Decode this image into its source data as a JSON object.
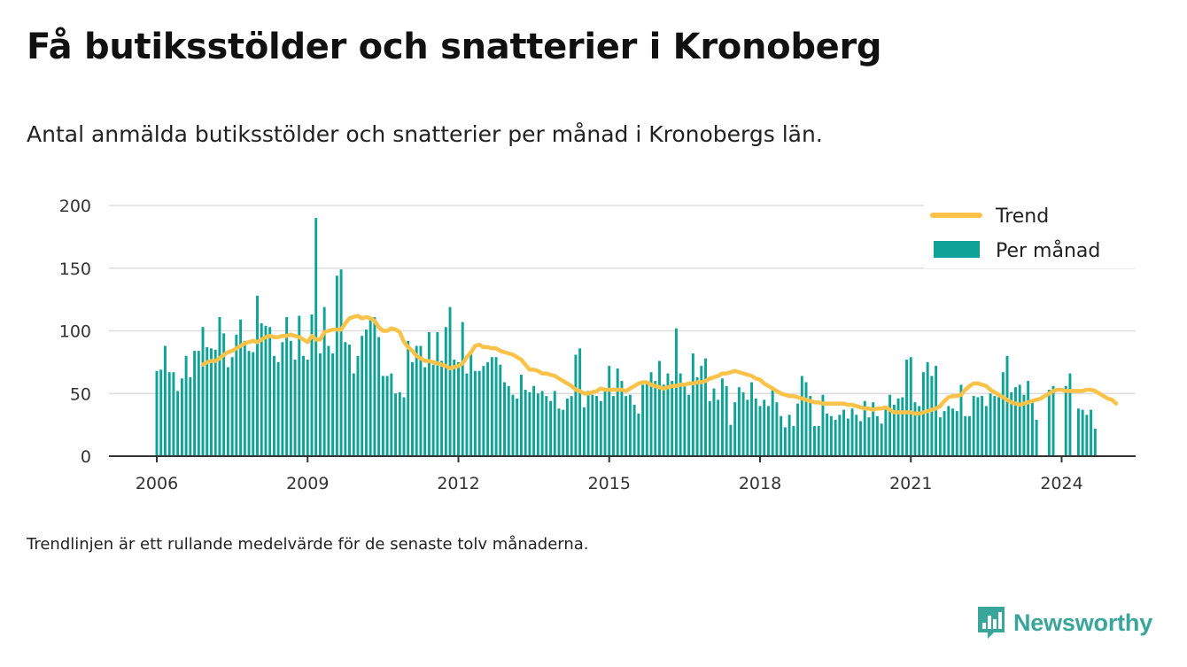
{
  "title": "Få butiksstölder och snatterier i Kronoberg",
  "subtitle": "Antal anmälda butiksstölder och snatterier per månad i Kronobergs län.",
  "note": "Trendlinjen är ett rullande medelvärde för de senaste tolv månaderna.",
  "brand": {
    "name": "Newsworthy",
    "icon": "newsworthy-logo-icon"
  },
  "colors": {
    "bars": "#0fa397",
    "trend": "#fbc24a",
    "grid": "#dddddd",
    "axis": "#333333",
    "brand": "#3aa59a"
  },
  "chart_data": {
    "type": "bar",
    "ylim": [
      0,
      200
    ],
    "yticks": [
      0,
      50,
      100,
      150,
      200
    ],
    "xticks": [
      "2006",
      "2009",
      "2012",
      "2015",
      "2018",
      "2021",
      "2024"
    ],
    "xrange": [
      "2005-10",
      "2025-12"
    ],
    "grid": true,
    "legend_position": "top-right",
    "legend": [
      {
        "label": "Trend",
        "type": "line",
        "color": "#fbc24a"
      },
      {
        "label": "Per månad",
        "type": "bar",
        "color": "#0fa397"
      }
    ],
    "series": [
      {
        "name": "Per månad",
        "type": "bar",
        "start": "2006-01",
        "values": [
          68,
          69,
          88,
          67,
          67,
          52,
          62,
          80,
          63,
          84,
          84,
          103,
          87,
          86,
          85,
          111,
          98,
          71,
          79,
          97,
          109,
          92,
          84,
          83,
          128,
          106,
          104,
          103,
          80,
          75,
          91,
          111,
          92,
          77,
          112,
          80,
          77,
          113,
          190,
          82,
          119,
          88,
          82,
          144,
          149,
          91,
          89,
          66,
          80,
          96,
          101,
          110,
          111,
          95,
          64,
          64,
          66,
          50,
          51,
          47,
          92,
          75,
          88,
          88,
          71,
          99,
          73,
          99,
          76,
          103,
          119,
          77,
          75,
          107,
          66,
          83,
          68,
          68,
          72,
          75,
          79,
          79,
          73,
          59,
          56,
          49,
          46,
          65,
          53,
          51,
          56,
          50,
          52,
          48,
          44,
          52,
          38,
          37,
          46,
          48,
          81,
          86,
          39,
          52,
          49,
          48,
          44,
          52,
          72,
          48,
          70,
          60,
          48,
          49,
          41,
          34,
          57,
          60,
          67,
          60,
          76,
          57,
          66,
          60,
          102,
          66,
          56,
          49,
          82,
          63,
          72,
          78,
          44,
          54,
          45,
          62,
          56,
          25,
          43,
          55,
          51,
          45,
          59,
          46,
          40,
          45,
          40,
          54,
          43,
          32,
          23,
          33,
          24,
          42,
          64,
          59,
          48,
          24,
          24,
          49,
          34,
          32,
          29,
          33,
          37,
          30,
          38,
          33,
          28,
          44,
          31,
          43,
          32,
          26,
          38,
          49,
          41,
          46,
          47,
          77,
          79,
          43,
          40,
          67,
          75,
          64,
          72,
          31,
          36,
          40,
          38,
          36,
          57,
          32,
          32,
          48,
          47,
          48,
          40,
          50,
          48,
          47,
          67,
          80,
          51,
          55,
          57,
          49,
          60,
          44,
          29,
          0,
          0,
          53,
          56,
          0,
          0,
          56,
          66,
          0,
          38,
          37,
          33,
          37,
          22
        ]
      },
      {
        "name": "Trend",
        "type": "line",
        "start": "2006-12",
        "values": [
          73,
          75,
          76,
          76,
          78,
          81,
          83,
          84,
          86,
          88,
          90,
          91,
          92,
          91,
          93,
          95,
          96,
          95,
          95,
          96,
          96,
          97,
          96,
          95,
          93,
          91,
          96,
          93,
          93,
          99,
          100,
          101,
          101,
          101,
          106,
          110,
          111,
          112,
          110,
          111,
          110,
          108,
          103,
          100,
          100,
          102,
          101,
          99,
          91,
          87,
          84,
          80,
          78,
          76,
          76,
          75,
          74,
          73,
          72,
          70,
          71,
          72,
          74,
          79,
          83,
          88,
          89,
          87,
          87,
          86,
          86,
          84,
          83,
          82,
          81,
          79,
          77,
          73,
          69,
          69,
          68,
          66,
          66,
          65,
          64,
          62,
          60,
          58,
          56,
          53,
          52,
          50,
          50,
          51,
          52,
          54,
          53,
          53,
          53,
          53,
          53,
          52,
          54,
          56,
          58,
          59,
          59,
          57,
          56,
          55,
          54,
          55,
          56,
          56,
          57,
          57,
          58,
          58,
          59,
          59,
          60,
          62,
          63,
          64,
          66,
          66,
          67,
          68,
          67,
          66,
          65,
          64,
          62,
          61,
          58,
          56,
          54,
          52,
          50,
          49,
          48,
          48,
          47,
          46,
          45,
          44,
          43,
          43,
          42,
          42,
          42,
          42,
          42,
          42,
          41,
          41,
          40,
          39,
          38,
          38,
          37,
          38,
          38,
          39,
          37,
          35,
          35,
          35,
          35,
          35,
          34,
          34,
          35,
          36,
          37,
          38,
          40,
          44,
          47,
          48,
          48,
          49,
          53,
          56,
          58,
          58,
          57,
          56,
          53,
          51,
          49,
          47,
          45,
          43,
          42,
          41,
          42,
          43,
          44,
          45,
          46,
          48,
          50,
          52,
          53,
          53,
          52,
          52,
          52,
          52,
          52,
          53,
          53,
          52,
          50,
          48,
          46,
          45,
          42
        ]
      }
    ]
  }
}
